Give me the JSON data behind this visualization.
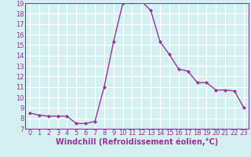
{
  "hours": [
    0,
    1,
    2,
    3,
    4,
    5,
    6,
    7,
    8,
    9,
    10,
    11,
    12,
    13,
    14,
    15,
    16,
    17,
    18,
    19,
    20,
    21,
    22,
    23
  ],
  "values": [
    8.5,
    8.3,
    8.2,
    8.2,
    8.2,
    7.5,
    7.5,
    7.7,
    11.0,
    15.3,
    19.0,
    19.1,
    19.2,
    18.3,
    15.3,
    14.1,
    12.7,
    12.5,
    11.4,
    11.4,
    10.7,
    10.7,
    10.6,
    9.0
  ],
  "line_color": "#993399",
  "marker": "D",
  "marker_size": 2,
  "bg_color": "#d4f0f0",
  "grid_color": "#ffffff",
  "xlabel": "Windchill (Refroidissement éolien,°C)",
  "xlim": [
    -0.5,
    23.5
  ],
  "ylim": [
    7,
    19
  ],
  "yticks": [
    7,
    8,
    9,
    10,
    11,
    12,
    13,
    14,
    15,
    16,
    17,
    18,
    19
  ],
  "xticks": [
    0,
    1,
    2,
    3,
    4,
    5,
    6,
    7,
    8,
    9,
    10,
    11,
    12,
    13,
    14,
    15,
    16,
    17,
    18,
    19,
    20,
    21,
    22,
    23
  ],
  "xlabel_fontsize": 7,
  "tick_fontsize": 6,
  "axis_label_color": "#993399",
  "tick_label_color": "#993399",
  "spine_color": "#993399",
  "linewidth": 1.0
}
